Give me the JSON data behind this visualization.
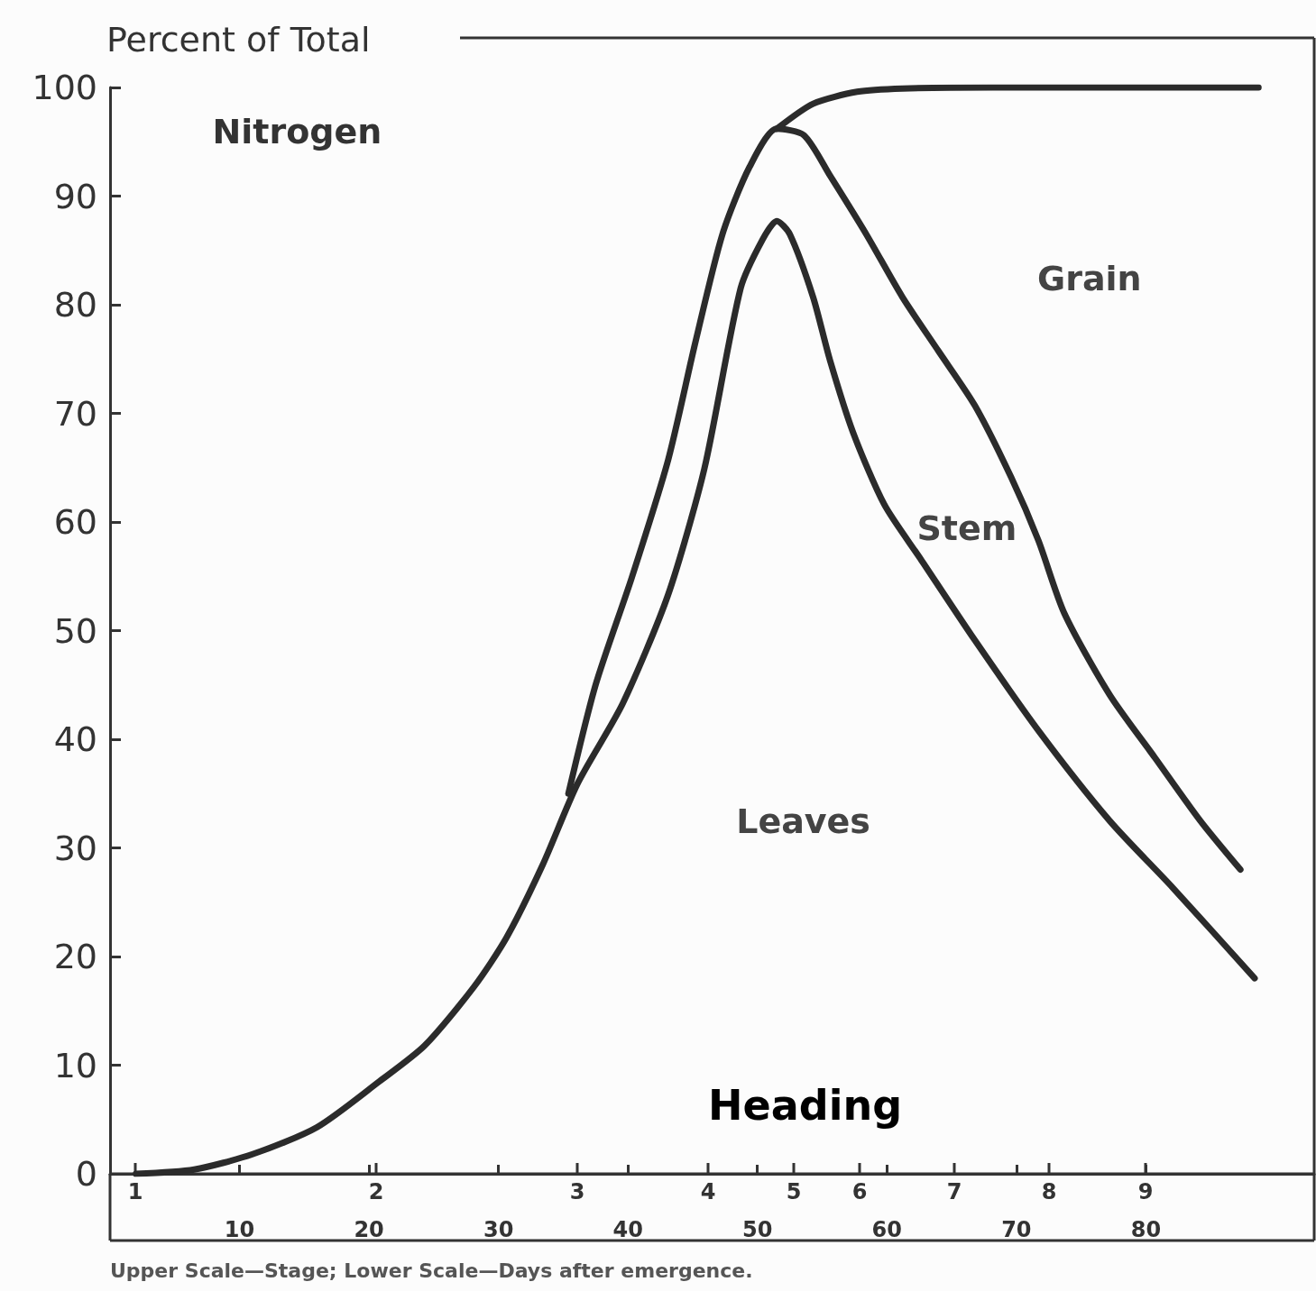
{
  "chart_data": {
    "type": "line",
    "title": "Nitrogen",
    "ylabel": "Percent of Total",
    "annotations": [
      "Heading",
      "Upper Scale—Stage; Lower Scale—Days after emergence.",
      "Leaves",
      "Stem",
      "Grain",
      "1",
      "2",
      "3",
      "4",
      "5",
      "6",
      "7",
      "8",
      "9"
    ],
    "xlim": [
      0,
      93
    ],
    "xticks": [
      10,
      20,
      30,
      40,
      50,
      60,
      70,
      80
    ],
    "ylim": [
      0,
      100
    ],
    "yticks": [
      0,
      10,
      20,
      30,
      40,
      50,
      60,
      70,
      80,
      90,
      100
    ],
    "grid": false,
    "marker": "none",
    "line_style": "solid",
    "series": [
      {
        "color": "#2b2b2b",
        "x": [
          2,
          6.5,
          11,
          16,
          20.8,
          24.3,
          28.1,
          30.6,
          33.4,
          36.1,
          39.6,
          43.1,
          45.9,
          48.7,
          50.4,
          51.5,
          52.5,
          54.3,
          55.6,
          57.4,
          59.8,
          62.6,
          66.8,
          71.7,
          77.2,
          82.1,
          88.4
        ],
        "values": [
          0,
          0.4,
          1.8,
          4.3,
          8.5,
          11.8,
          17.2,
          21.7,
          28.4,
          35.9,
          43.3,
          53.3,
          64.9,
          81.5,
          86,
          87.7,
          86.5,
          80.7,
          74.9,
          68.2,
          61.6,
          56.6,
          49.1,
          40.8,
          32.5,
          26.3,
          18
        ]
      },
      {
        "color": "#2b2b2b",
        "x": [
          35.4,
          37.5,
          40.3,
          43.1,
          45.2,
          47.3,
          49.4,
          51.5,
          53.6,
          55.6,
          58.4,
          61.2,
          64,
          66.8,
          69.6,
          71.7,
          73.7,
          77.2,
          80.7,
          84.2,
          87.3
        ],
        "values": [
          35,
          45,
          54.9,
          65.7,
          76.5,
          86.5,
          92.7,
          96.2,
          95.6,
          91.9,
          86.5,
          80.7,
          75.7,
          70.7,
          64.1,
          58.3,
          51.6,
          44.1,
          38.3,
          32.5,
          28
        ]
      },
      {
        "color": "#2b2b2b",
        "x": [
          51.5,
          54.3,
          57.7,
          61.2,
          68.2,
          78.6,
          88.7
        ],
        "values": [
          96.2,
          98.5,
          99.6,
          99.9,
          100,
          100,
          100
        ]
      }
    ]
  }
}
